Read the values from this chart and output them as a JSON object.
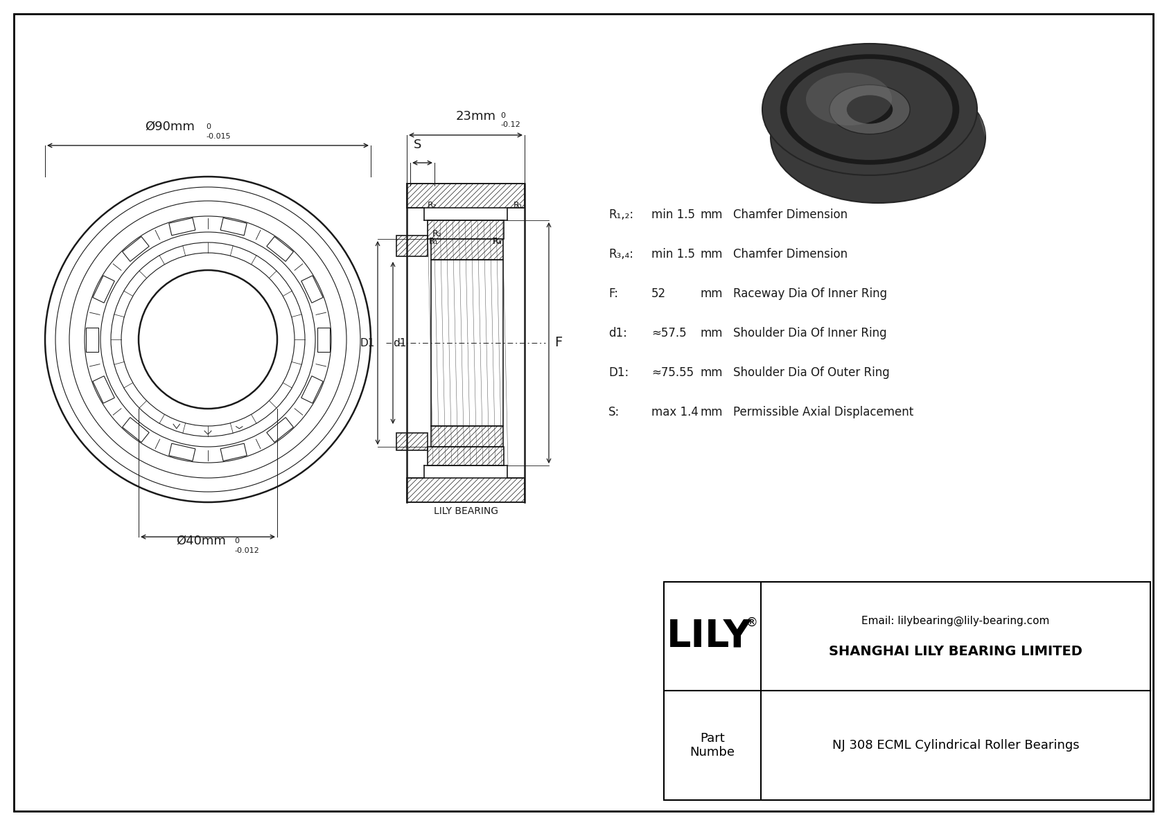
{
  "bg_color": "#ffffff",
  "drawing_color": "#1a1a1a",
  "title_company": "SHANGHAI LILY BEARING LIMITED",
  "title_email": "Email: lilybearing@lily-bearing.com",
  "title_part_label": "Part\nNumbe",
  "title_part_value": "NJ 308 ECML Cylindrical Roller Bearings",
  "lily_brand": "LILY",
  "outer_dia_label": "Ø90mm",
  "outer_dia_tol_top": "0",
  "outer_dia_tol_bot": "-0.015",
  "inner_dia_label": "Ø40mm",
  "inner_dia_tol_top": "0",
  "inner_dia_tol_bot": "-0.012",
  "width_label": "23mm",
  "width_tol_top": "0",
  "width_tol_bot": "-0.12",
  "dim_S": "S",
  "dim_D1": "D1",
  "dim_d1": "d1",
  "dim_F": "F",
  "param_R12": "R₁,₂:",
  "param_R34": "R₃,₄:",
  "param_F": "F:",
  "param_d1": "d1:",
  "param_D1": "D1:",
  "param_S": "S:",
  "val_R12": "min 1.5",
  "val_R34": "min 1.5",
  "val_F": "52",
  "val_d1": "≈57.5",
  "val_D1": "≈75.55",
  "val_S": "max 1.4",
  "unit_mm": "mm",
  "desc_R12": "Chamfer Dimension",
  "desc_R34": "Chamfer Dimension",
  "desc_F": "Raceway Dia Of Inner Ring",
  "desc_d1": "Shoulder Dia Of Inner Ring",
  "desc_D1": "Shoulder Dia Of Outer Ring",
  "desc_S": "Permissible Axial Displacement",
  "lily_watermark": "LILY BEARING",
  "R1_label": "R₁",
  "R2_label": "R₂",
  "R3_label": "R₃",
  "R4_label": "R₄"
}
